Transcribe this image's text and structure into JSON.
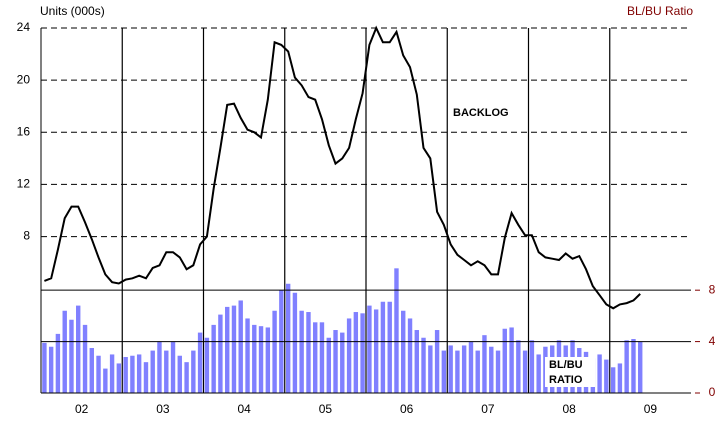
{
  "chart_data": {
    "type": "line-bar",
    "y_label": "Units (000s)",
    "y2_label": "BL/BU Ratio",
    "annotations": [
      "BACKLOG",
      "BL/BU",
      "RATIO"
    ],
    "xlim": [
      2002,
      2010
    ],
    "xticks": [
      {
        "value": 2002.5,
        "label": "02"
      },
      {
        "value": 2003.5,
        "label": "03"
      },
      {
        "value": 2004.5,
        "label": "04"
      },
      {
        "value": 2005.5,
        "label": "05"
      },
      {
        "value": 2006.5,
        "label": "06"
      },
      {
        "value": 2007.5,
        "label": "07"
      },
      {
        "value": 2008.5,
        "label": "08"
      },
      {
        "value": 2009.5,
        "label": "09"
      }
    ],
    "xgrid": [
      2003,
      2004,
      2005,
      2006,
      2007,
      2008,
      2009
    ],
    "ylim": [
      -4,
      24
    ],
    "yticks": [
      8,
      12,
      16,
      20,
      24
    ],
    "y2lim": [
      0,
      28.4
    ],
    "y2ticks": [
      0,
      4,
      8
    ],
    "grid": true,
    "x": [
      2002.042,
      2002.125,
      2002.208,
      2002.292,
      2002.375,
      2002.458,
      2002.542,
      2002.625,
      2002.708,
      2002.792,
      2002.875,
      2002.958,
      2003.042,
      2003.125,
      2003.208,
      2003.292,
      2003.375,
      2003.458,
      2003.542,
      2003.625,
      2003.708,
      2003.792,
      2003.875,
      2003.958,
      2004.042,
      2004.125,
      2004.208,
      2004.292,
      2004.375,
      2004.458,
      2004.542,
      2004.625,
      2004.708,
      2004.792,
      2004.875,
      2004.958,
      2005.042,
      2005.125,
      2005.208,
      2005.292,
      2005.375,
      2005.458,
      2005.542,
      2005.625,
      2005.708,
      2005.792,
      2005.875,
      2005.958,
      2006.042,
      2006.125,
      2006.208,
      2006.292,
      2006.375,
      2006.458,
      2006.542,
      2006.625,
      2006.708,
      2006.792,
      2006.875,
      2006.958,
      2007.042,
      2007.125,
      2007.208,
      2007.292,
      2007.375,
      2007.458,
      2007.542,
      2007.625,
      2007.708,
      2007.792,
      2007.875,
      2007.958,
      2008.042,
      2008.125,
      2008.208,
      2008.292,
      2008.375,
      2008.458,
      2008.542,
      2008.625,
      2008.708,
      2008.792,
      2008.875,
      2008.958,
      2009.042,
      2009.125,
      2009.208,
      2009.292,
      2009.375
    ],
    "series": [
      {
        "name": "BACKLOG",
        "kind": "line",
        "color": "#000000",
        "values": [
          4.6,
          4.8,
          7.0,
          9.4,
          10.3,
          10.3,
          9.1,
          7.8,
          6.4,
          5.1,
          4.5,
          4.4,
          4.7,
          4.8,
          5.0,
          4.8,
          5.6,
          5.8,
          6.8,
          6.8,
          6.4,
          5.5,
          5.8,
          7.4,
          8.0,
          11.7,
          14.8,
          18.1,
          18.2,
          17.1,
          16.2,
          16.0,
          15.6,
          18.5,
          22.9,
          22.7,
          22.2,
          20.2,
          19.6,
          18.7,
          18.5,
          17.0,
          15.0,
          13.6,
          14.0,
          14.8,
          17.0,
          19.0,
          22.7,
          24.0,
          22.9,
          22.9,
          23.7,
          21.9,
          21.0,
          18.9,
          14.8,
          14.0,
          9.9,
          8.9,
          7.4,
          6.6,
          6.2,
          5.8,
          6.1,
          5.8,
          5.1,
          5.1,
          7.9,
          9.8,
          8.9,
          8.1,
          8.1,
          6.8,
          6.4,
          6.3,
          6.2,
          6.7,
          6.3,
          6.5,
          5.5,
          4.2,
          3.5,
          2.8,
          2.5,
          2.8,
          2.9,
          3.1,
          3.6
        ]
      },
      {
        "name": "BL/BU RATIO",
        "kind": "bar",
        "axis": "y2",
        "color": "#8080ff",
        "values": [
          3.9,
          3.6,
          4.6,
          6.4,
          5.7,
          6.8,
          5.3,
          3.5,
          2.9,
          1.9,
          3.0,
          2.3,
          2.8,
          2.9,
          3.0,
          2.4,
          3.3,
          4.0,
          3.3,
          4.0,
          2.9,
          2.4,
          3.3,
          4.7,
          4.3,
          5.3,
          6.1,
          6.7,
          6.8,
          7.2,
          5.8,
          5.3,
          5.2,
          5.1,
          6.4,
          8.0,
          8.5,
          7.8,
          6.4,
          6.3,
          5.5,
          5.5,
          4.3,
          4.9,
          4.7,
          5.8,
          6.3,
          6.2,
          6.8,
          6.5,
          7.1,
          7.1,
          9.7,
          6.4,
          5.8,
          4.9,
          4.3,
          3.7,
          4.9,
          3.3,
          3.7,
          3.3,
          3.7,
          4.0,
          3.3,
          4.5,
          3.6,
          3.3,
          5.0,
          5.1,
          4.1,
          3.3,
          4.1,
          3.0,
          3.6,
          3.7,
          4.1,
          3.7,
          4.1,
          3.5,
          3.2,
          2.7,
          3.0,
          2.6,
          2.0,
          2.3,
          4.1,
          4.2,
          4.0
        ]
      }
    ]
  }
}
